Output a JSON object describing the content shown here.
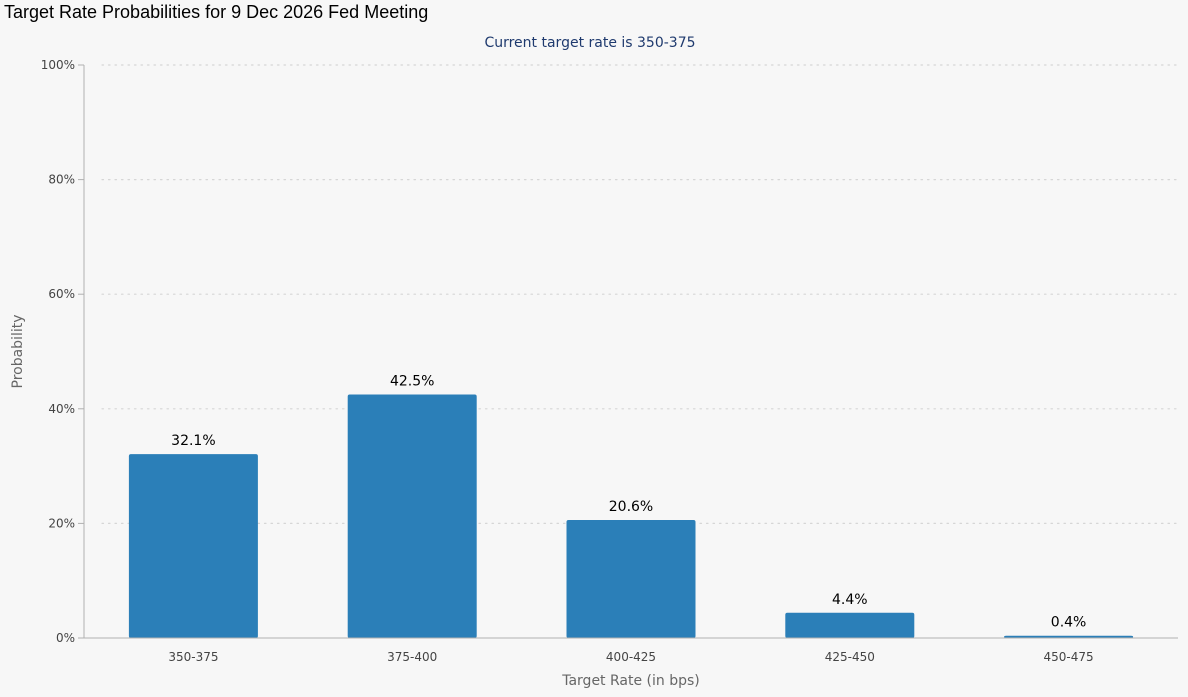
{
  "header": {
    "title": "Target Rate Probabilities for 9 Dec 2026 Fed Meeting"
  },
  "chart_data": {
    "type": "bar",
    "subtitle": "Current target rate is 350-375",
    "xlabel": "Target Rate (in bps)",
    "ylabel": "Probability",
    "categories": [
      "350-375",
      "375-400",
      "400-425",
      "425-450",
      "450-475"
    ],
    "values": [
      32.1,
      42.5,
      20.6,
      4.4,
      0.4
    ],
    "data_labels": [
      "32.1%",
      "42.5%",
      "20.6%",
      "4.4%",
      "0.4%"
    ],
    "ylim": [
      0,
      100
    ],
    "yticks": [
      0,
      20,
      40,
      60,
      80,
      100
    ],
    "ytick_labels": [
      "0%",
      "20%",
      "40%",
      "60%",
      "80%",
      "100%"
    ],
    "grid": true,
    "bar_color": "#2b7fb8"
  }
}
